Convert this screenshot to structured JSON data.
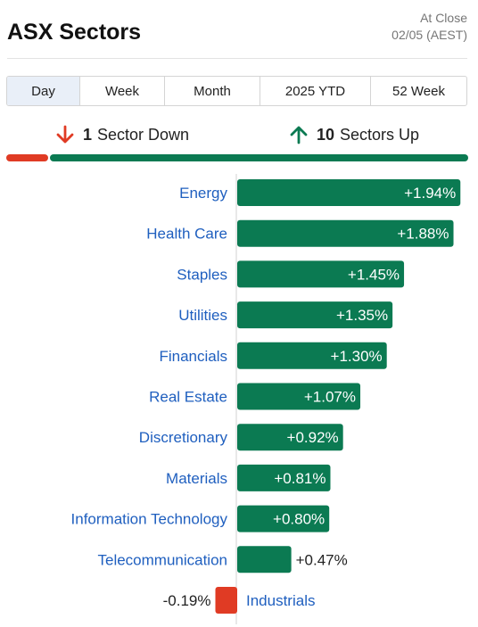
{
  "header": {
    "title": "ASX Sectors",
    "status": "At Close",
    "date": "02/05 (AEST)"
  },
  "tabs": [
    {
      "label": "Day",
      "active": true
    },
    {
      "label": "Week",
      "active": false
    },
    {
      "label": "Month",
      "active": false
    },
    {
      "label": "2025 YTD",
      "active": false
    },
    {
      "label": "52 Week",
      "active": false
    }
  ],
  "summary": {
    "down_count": "1",
    "down_label": "Sector Down",
    "up_count": "10",
    "up_label": "Sectors Up"
  },
  "colors": {
    "up": "#0b7a52",
    "down": "#e03b24",
    "label": "#1f5fbf",
    "axis": "#d0d0d0"
  },
  "chart_data": {
    "type": "bar",
    "orientation": "horizontal",
    "categories": [
      "Energy",
      "Health Care",
      "Staples",
      "Utilities",
      "Financials",
      "Real Estate",
      "Discretionary",
      "Materials",
      "Information Technology",
      "Telecommunication",
      "Industrials"
    ],
    "values": [
      1.94,
      1.88,
      1.45,
      1.35,
      1.3,
      1.07,
      0.92,
      0.81,
      0.8,
      0.47,
      -0.19
    ],
    "value_labels": [
      "+1.94%",
      "+1.88%",
      "+1.45%",
      "+1.35%",
      "+1.30%",
      "+1.07%",
      "+0.92%",
      "+0.81%",
      "+0.80%",
      "+0.47%",
      "-0.19%"
    ],
    "unit": "%",
    "title": "",
    "xlabel": "",
    "ylabel": ""
  }
}
